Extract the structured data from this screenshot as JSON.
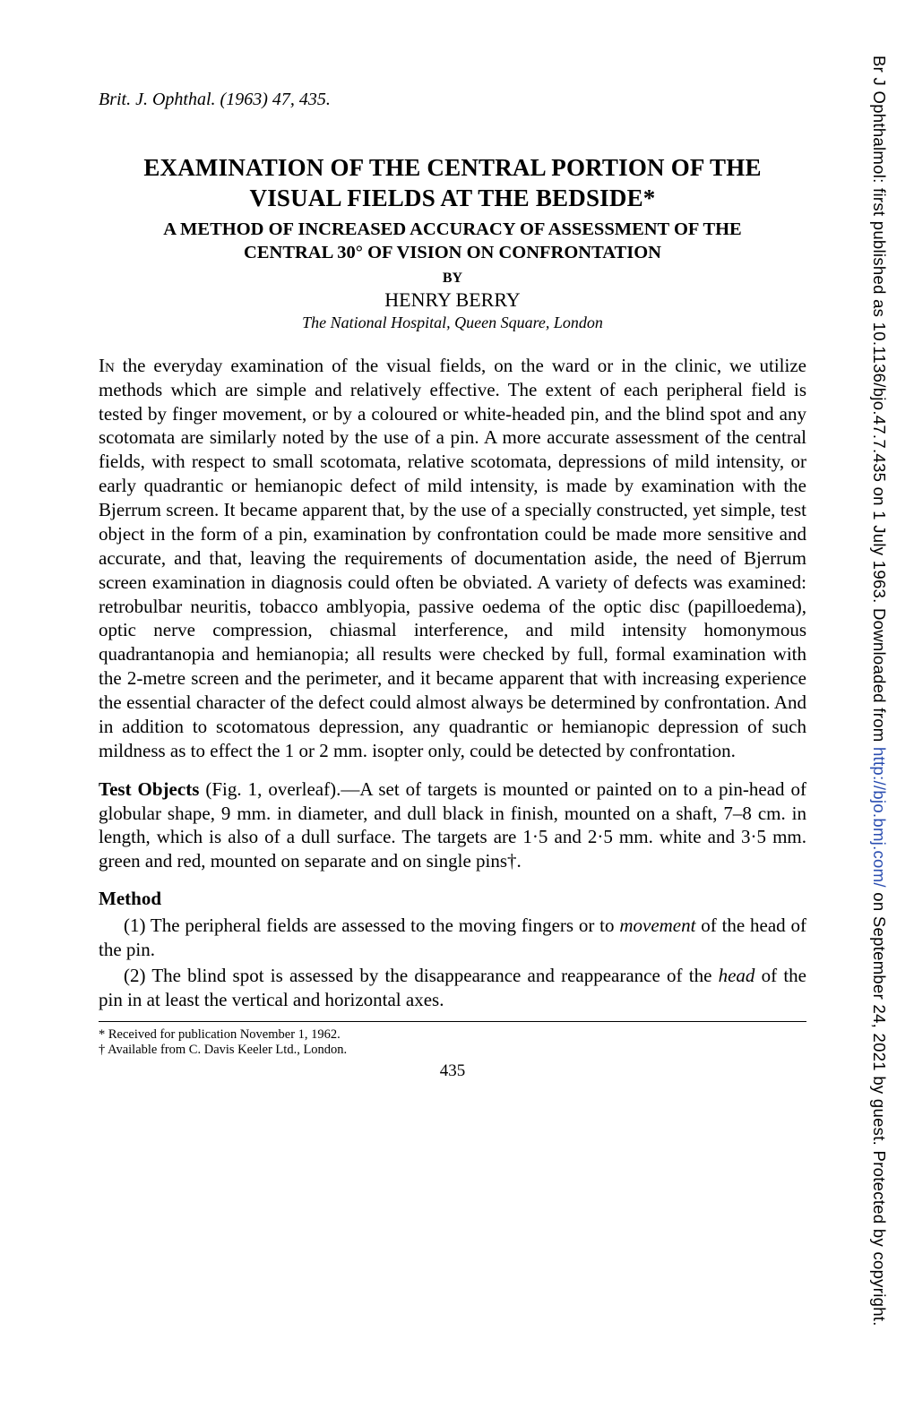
{
  "citation": "Brit. J. Ophthal. (1963) 47, 435.",
  "title_line1": "EXAMINATION OF THE CENTRAL PORTION OF THE",
  "title_line2": "VISUAL FIELDS AT THE BEDSIDE*",
  "subtitle_line1": "A METHOD OF INCREASED ACCURACY OF ASSESSMENT OF THE",
  "subtitle_line2": "CENTRAL 30° OF VISION ON CONFRONTATION",
  "by": "BY",
  "author": "HENRY BERRY",
  "affiliation": "The National Hospital, Queen Square, London",
  "para1_first": "In",
  "para1": " the everyday examination of the visual fields, on the ward or in the clinic, we utilize methods which are simple and relatively effective. The extent of each peripheral field is tested by finger movement, or by a coloured or white-headed pin, and the blind spot and any scotomata are similarly noted by the use of a pin. A more accurate assessment of the central fields, with respect to small scotomata, relative scotomata, depressions of mild intensity, or early quadrantic or hemianopic defect of mild intensity, is made by examination with the Bjerrum screen. It became apparent that, by the use of a specially constructed, yet simple, test object in the form of a pin, examination by confrontation could be made more sensitive and accurate, and that, leaving the requirements of documentation aside, the need of Bjerrum screen examination in diagnosis could often be obviated. A variety of defects was examined: retrobulbar neuritis, tobacco amblyopia, passive oedema of the optic disc (papilloedema), optic nerve compression, chiasmal interference, and mild intensity homonymous quadrantanopia and hemianopia; all results were checked by full, formal examination with the 2-metre screen and the perimeter, and it became apparent that with increasing experience the essential character of the defect could almost always be determined by confrontation. And in addition to scotomatous depression, any quadrantic or hemianopic depression of such mildness as to effect the 1 or 2 mm. isopter only, could be detected by confrontation.",
  "para2_runin": "Test Objects",
  "para2": " (Fig. 1, overleaf).—A set of targets is mounted or painted on to a pin-head of globular shape, 9 mm. in diameter, and dull black in finish, mounted on a shaft, 7–8 cm. in length, which is also of a dull surface. The targets are 1·5 and 2·5 mm. white and 3·5 mm. green and red, mounted on separate and on single pins†.",
  "method_heading": "Method",
  "method1_pre": "(1) The peripheral fields are assessed to the moving fingers or to ",
  "method1_ital": "movement",
  "method1_post": " of the head of the pin.",
  "method2_pre": "(2) The blind spot is assessed by the disappearance and reappearance of the ",
  "method2_ital": "head",
  "method2_post": " of the pin in at least the vertical and horizontal axes.",
  "footnote1": "* Received for publication November 1, 1962.",
  "footnote2": "† Available from C. Davis Keeler Ltd., London.",
  "page_number": "435",
  "side": {
    "pre": "Br J Ophthalmol: first published as 10.1136/bjo.47.7.435 on 1 July 1963. Downloaded from ",
    "link": "http://bjo.bmj.com/",
    "post": " on September 24, 2021 by guest. Protected by copyright."
  }
}
